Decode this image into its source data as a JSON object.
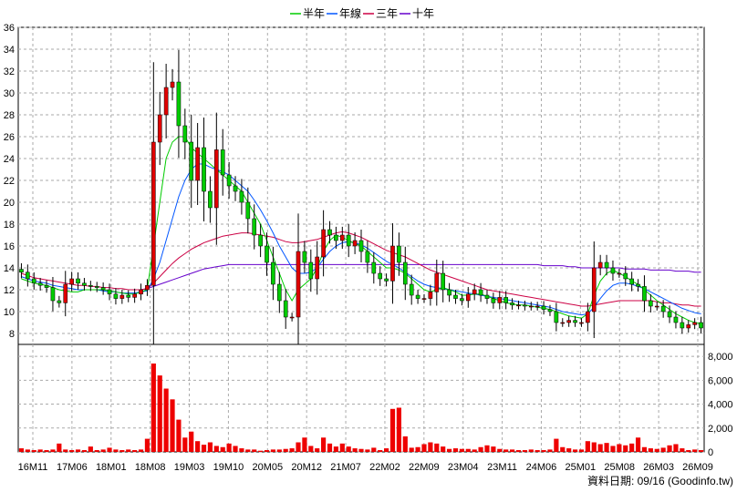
{
  "chart_data": [
    {
      "type": "candlestick",
      "title": "",
      "legend": {
        "placement": "top-center",
        "entries": [
          {
            "name": "半年",
            "color": "#00cc00"
          },
          {
            "name": "年線",
            "color": "#0055ff"
          },
          {
            "name": "三年",
            "color": "#cc0044"
          },
          {
            "name": "十年",
            "color": "#6600cc"
          }
        ]
      },
      "ylim": [
        7,
        36
      ],
      "yticks": [
        8,
        10,
        12,
        14,
        16,
        18,
        20,
        22,
        24,
        26,
        28,
        30,
        32,
        34,
        36
      ],
      "grid": true,
      "up_color": "#e00000",
      "down_color": "#00cc00",
      "candles_note_price_path": [
        13.6,
        13.0,
        12.6,
        12.4,
        12.2,
        11.0,
        10.8,
        12.5,
        13.0,
        12.6,
        12.4,
        12.3,
        12.2,
        12.0,
        11.6,
        11.2,
        11.5,
        11.3,
        11.6,
        12.0,
        12.4,
        25.5,
        28.0,
        30.5,
        31.0,
        27.0,
        25.5,
        22.0,
        25.0,
        21.0,
        19.5,
        24.8,
        22.5,
        21.5,
        21.0,
        20.0,
        18.5,
        17.0,
        16.0,
        14.5,
        12.5,
        11.0,
        9.5,
        9.5,
        15.5,
        14.5,
        13.0,
        15.0,
        17.5,
        17.0,
        16.5,
        17.0,
        16.0,
        16.5,
        15.5,
        14.5,
        13.5,
        13.0,
        12.8,
        16.0,
        14.5,
        12.5,
        11.5,
        11.2,
        11.2,
        11.8,
        13.5,
        12.0,
        11.5,
        11.2,
        11.0,
        11.6,
        12.0,
        11.5,
        11.2,
        10.8,
        11.3,
        10.8,
        10.6,
        10.6,
        10.5,
        10.5,
        10.5,
        10.2,
        10.0,
        9.0,
        9.0,
        9.2,
        9.0,
        9.0,
        10.0,
        14.0,
        14.5,
        14.0,
        13.5,
        13.5,
        13.0,
        12.5,
        12.3,
        11.0,
        10.5,
        10.5,
        10.0,
        9.5,
        9.0,
        8.5,
        8.8,
        9.0,
        8.5
      ],
      "ma_half_year": [
        13.0,
        12.8,
        12.6,
        12.5,
        12.4,
        12.2,
        12.0,
        11.9,
        11.8,
        11.8,
        12.0,
        12.0,
        12.0,
        12.0,
        11.9,
        11.8,
        11.7,
        11.6,
        11.6,
        11.8,
        12.0,
        16.0,
        20.0,
        24.0,
        25.5,
        26.0,
        26.0,
        25.0,
        24.5,
        24.0,
        23.5,
        23.0,
        22.5,
        22.0,
        21.5,
        21.0,
        20.0,
        19.0,
        18.0,
        16.5,
        15.0,
        13.5,
        12.0,
        11.0,
        12.0,
        12.5,
        13.0,
        14.0,
        15.5,
        16.5,
        17.0,
        16.8,
        16.5,
        16.2,
        16.0,
        15.5,
        15.0,
        14.5,
        14.0,
        14.0,
        13.8,
        13.5,
        13.0,
        12.5,
        12.0,
        11.8,
        12.0,
        12.2,
        12.0,
        11.8,
        11.5,
        11.5,
        11.6,
        11.6,
        11.4,
        11.2,
        11.0,
        10.8,
        10.7,
        10.6,
        10.6,
        10.5,
        10.4,
        10.3,
        10.2,
        10.0,
        9.8,
        9.6,
        9.5,
        9.4,
        9.8,
        11.5,
        12.8,
        13.5,
        13.8,
        13.5,
        13.2,
        12.8,
        12.5,
        12.0,
        11.5,
        11.0,
        10.6,
        10.2,
        9.8,
        9.5,
        9.2,
        9.0,
        8.9
      ],
      "ma_year": [
        13.2,
        13.0,
        12.8,
        12.7,
        12.6,
        12.4,
        12.3,
        12.2,
        12.1,
        12.0,
        12.0,
        12.0,
        12.0,
        11.9,
        11.8,
        11.8,
        11.7,
        11.7,
        11.7,
        11.8,
        11.9,
        13.0,
        14.5,
        16.5,
        18.5,
        20.5,
        22.0,
        23.0,
        23.5,
        23.5,
        23.2,
        23.0,
        22.8,
        22.5,
        22.0,
        21.5,
        21.0,
        20.2,
        19.3,
        18.3,
        17.2,
        16.0,
        15.0,
        14.0,
        13.5,
        13.5,
        13.6,
        14.0,
        14.8,
        15.5,
        16.0,
        16.3,
        16.4,
        16.3,
        16.1,
        15.8,
        15.4,
        15.0,
        14.6,
        14.3,
        14.0,
        13.6,
        13.2,
        12.8,
        12.5,
        12.3,
        12.2,
        12.1,
        12.0,
        11.9,
        11.8,
        11.7,
        11.6,
        11.5,
        11.4,
        11.3,
        11.2,
        11.1,
        11.0,
        10.9,
        10.8,
        10.7,
        10.6,
        10.5,
        10.4,
        10.2,
        10.0,
        9.9,
        9.8,
        9.7,
        9.8,
        10.4,
        11.2,
        11.9,
        12.4,
        12.6,
        12.6,
        12.5,
        12.3,
        12.1,
        11.8,
        11.5,
        11.2,
        10.9,
        10.6,
        10.3,
        10.1,
        9.9,
        9.8
      ],
      "ma_three_year": [
        13.5,
        13.3,
        13.1,
        13.0,
        12.9,
        12.8,
        12.7,
        12.6,
        12.5,
        12.4,
        12.4,
        12.3,
        12.3,
        12.2,
        12.2,
        12.1,
        12.1,
        12.0,
        12.0,
        12.0,
        12.1,
        12.6,
        13.2,
        13.8,
        14.4,
        14.9,
        15.3,
        15.7,
        16.0,
        16.3,
        16.5,
        16.7,
        16.9,
        17.0,
        17.1,
        17.2,
        17.2,
        17.1,
        17.0,
        16.9,
        16.8,
        16.6,
        16.4,
        16.3,
        16.3,
        16.4,
        16.5,
        16.6,
        16.8,
        17.0,
        17.2,
        17.3,
        17.2,
        17.0,
        16.8,
        16.5,
        16.2,
        15.9,
        15.6,
        15.4,
        15.2,
        15.0,
        14.7,
        14.4,
        14.1,
        13.8,
        13.6,
        13.4,
        13.2,
        13.0,
        12.8,
        12.6,
        12.4,
        12.2,
        12.0,
        11.9,
        11.8,
        11.7,
        11.6,
        11.5,
        11.4,
        11.3,
        11.2,
        11.1,
        11.0,
        10.9,
        10.8,
        10.7,
        10.6,
        10.5,
        10.5,
        10.6,
        10.7,
        10.8,
        10.9,
        11.0,
        11.0,
        11.0,
        11.0,
        11.0,
        11.0,
        10.9,
        10.8,
        10.8,
        10.7,
        10.6,
        10.6,
        10.5,
        10.5
      ],
      "ma_ten_year": [
        null,
        null,
        null,
        null,
        null,
        null,
        null,
        null,
        null,
        null,
        null,
        null,
        null,
        null,
        null,
        null,
        null,
        null,
        null,
        12.0,
        12.1,
        12.3,
        12.5,
        12.7,
        12.9,
        13.1,
        13.3,
        13.5,
        13.7,
        13.9,
        14.0,
        14.1,
        14.2,
        14.3,
        14.3,
        14.3,
        14.3,
        14.3,
        14.3,
        14.3,
        14.3,
        14.3,
        14.3,
        14.3,
        14.3,
        14.3,
        14.3,
        14.3,
        14.3,
        14.3,
        14.3,
        14.3,
        14.3,
        14.3,
        14.3,
        14.3,
        14.3,
        14.3,
        14.3,
        14.3,
        14.3,
        14.3,
        14.3,
        14.3,
        14.3,
        14.3,
        14.3,
        14.3,
        14.3,
        14.3,
        14.3,
        14.3,
        14.3,
        14.3,
        14.3,
        14.3,
        14.3,
        14.3,
        14.3,
        14.3,
        14.3,
        14.3,
        14.3,
        14.2,
        14.2,
        14.2,
        14.2,
        14.1,
        14.1,
        14.0,
        14.0,
        14.0,
        14.0,
        14.0,
        14.0,
        14.0,
        13.9,
        13.9,
        13.9,
        13.9,
        13.8,
        13.8,
        13.8,
        13.8,
        13.7,
        13.7,
        13.7,
        13.6,
        13.6
      ]
    },
    {
      "type": "bar",
      "title": "",
      "ylim": [
        0,
        9000
      ],
      "yticks": [
        "0",
        "2,000",
        "4,000",
        "6,000",
        "8,000"
      ],
      "ytick_values": [
        0,
        2000,
        4000,
        6000,
        8000
      ],
      "color": "#ee0000",
      "values": [
        300,
        200,
        150,
        200,
        150,
        200,
        700,
        200,
        150,
        200,
        150,
        450,
        150,
        200,
        350,
        200,
        150,
        200,
        150,
        200,
        1100,
        7400,
        6400,
        5300,
        4400,
        2700,
        1200,
        1700,
        900,
        600,
        800,
        500,
        400,
        700,
        500,
        300,
        200,
        200,
        100,
        150,
        200,
        200,
        250,
        300,
        800,
        1200,
        500,
        300,
        1200,
        700,
        450,
        700,
        450,
        300,
        250,
        200,
        350,
        150,
        300,
        3600,
        3700,
        1300,
        350,
        400,
        650,
        800,
        700,
        450,
        250,
        300,
        250,
        250,
        200,
        400,
        550,
        450,
        250,
        200,
        200,
        150,
        150,
        200,
        150,
        150,
        200,
        1100,
        400,
        300,
        200,
        200,
        900,
        800,
        650,
        750,
        500,
        650,
        550,
        700,
        1200,
        400,
        300,
        250,
        350,
        550,
        650,
        300,
        150,
        200,
        150
      ],
      "xticks": [
        "16M11",
        "17M06",
        "18M01",
        "18M08",
        "19M03",
        "19M10",
        "20M05",
        "20M12",
        "21M07",
        "22M02",
        "22M09",
        "23M04",
        "23M11",
        "24M06",
        "25M01",
        "25M08",
        "26M03",
        "26M09"
      ]
    }
  ],
  "footer": {
    "source_label": "資料日期: 09/16 (Goodinfo.tw)"
  }
}
